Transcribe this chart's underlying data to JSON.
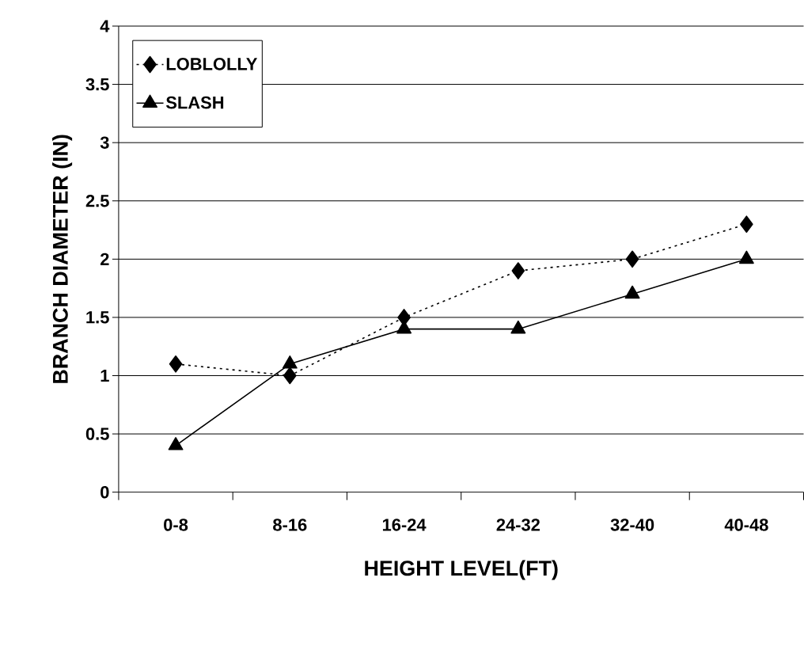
{
  "chart_data": {
    "type": "line",
    "xlabel": "HEIGHT LEVEL(FT)",
    "ylabel": "BRANCH DIAMETER (IN)",
    "categories": [
      "0-8",
      "8-16",
      "16-24",
      "24-32",
      "32-40",
      "40-48"
    ],
    "series": [
      {
        "name": "LOBLOLLY",
        "color": "#000000",
        "values": [
          1.1,
          1.0,
          1.5,
          1.9,
          2.0,
          2.3
        ],
        "marker": "diamond",
        "line_style": "dotted"
      },
      {
        "name": "SLASH",
        "color": "#000000",
        "values": [
          0.4,
          1.1,
          1.4,
          1.4,
          1.7,
          2.0
        ],
        "marker": "triangle",
        "line_style": "solid"
      }
    ],
    "ylim": [
      0,
      4
    ],
    "yticks": [
      0,
      0.5,
      1,
      1.5,
      2,
      2.5,
      3,
      3.5,
      4
    ],
    "grid": "y",
    "legend": "top left"
  }
}
